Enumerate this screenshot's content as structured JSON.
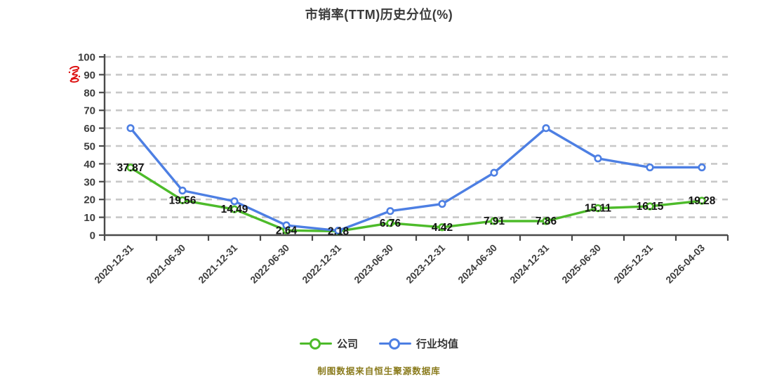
{
  "chart_data": {
    "type": "line",
    "title": "市销率(TTM)历史分位(%)",
    "categories": [
      "2020-12-31",
      "2021-06-30",
      "2021-12-31",
      "2022-06-30",
      "2022-12-31",
      "2023-06-30",
      "2023-12-31",
      "2024-06-30",
      "2024-12-31",
      "2025-06-30",
      "2025-12-31",
      "2026-04-03"
    ],
    "series": [
      {
        "name": "公司",
        "color": "#4dbb2a",
        "show_value_labels": true,
        "values": [
          37.87,
          19.56,
          14.49,
          2.64,
          2.18,
          6.76,
          4.42,
          7.91,
          7.86,
          15.11,
          16.15,
          19.28
        ]
      },
      {
        "name": "行业均值",
        "color": "#4d7fe3",
        "show_value_labels": false,
        "values": [
          60,
          25,
          19,
          5.5,
          2.5,
          13.5,
          17.5,
          35,
          60,
          43,
          38,
          38
        ]
      }
    ],
    "ylim": [
      0,
      100
    ],
    "ytick_step": 10,
    "grid": "horizontal-dashed",
    "legend_position": "bottom",
    "xlabel": "",
    "ylabel": ""
  },
  "legend": {
    "items": [
      {
        "label": "公司",
        "color": "#4dbb2a"
      },
      {
        "label": "行业均值",
        "color": "#4d7fe3"
      }
    ]
  },
  "footer": {
    "source_note": "制图数据来自恒生聚源数据库"
  },
  "icons": {
    "watermark": "red-seal-icon"
  },
  "colors": {
    "grid_line": "#c8c8c8",
    "axis_line": "#4a4a4a",
    "tick_label": "#3d3d3d",
    "value_label": "#141414",
    "title": "#3a3a3a",
    "footer_text": "#8a7b1d",
    "watermark_red": "#dd1212"
  }
}
